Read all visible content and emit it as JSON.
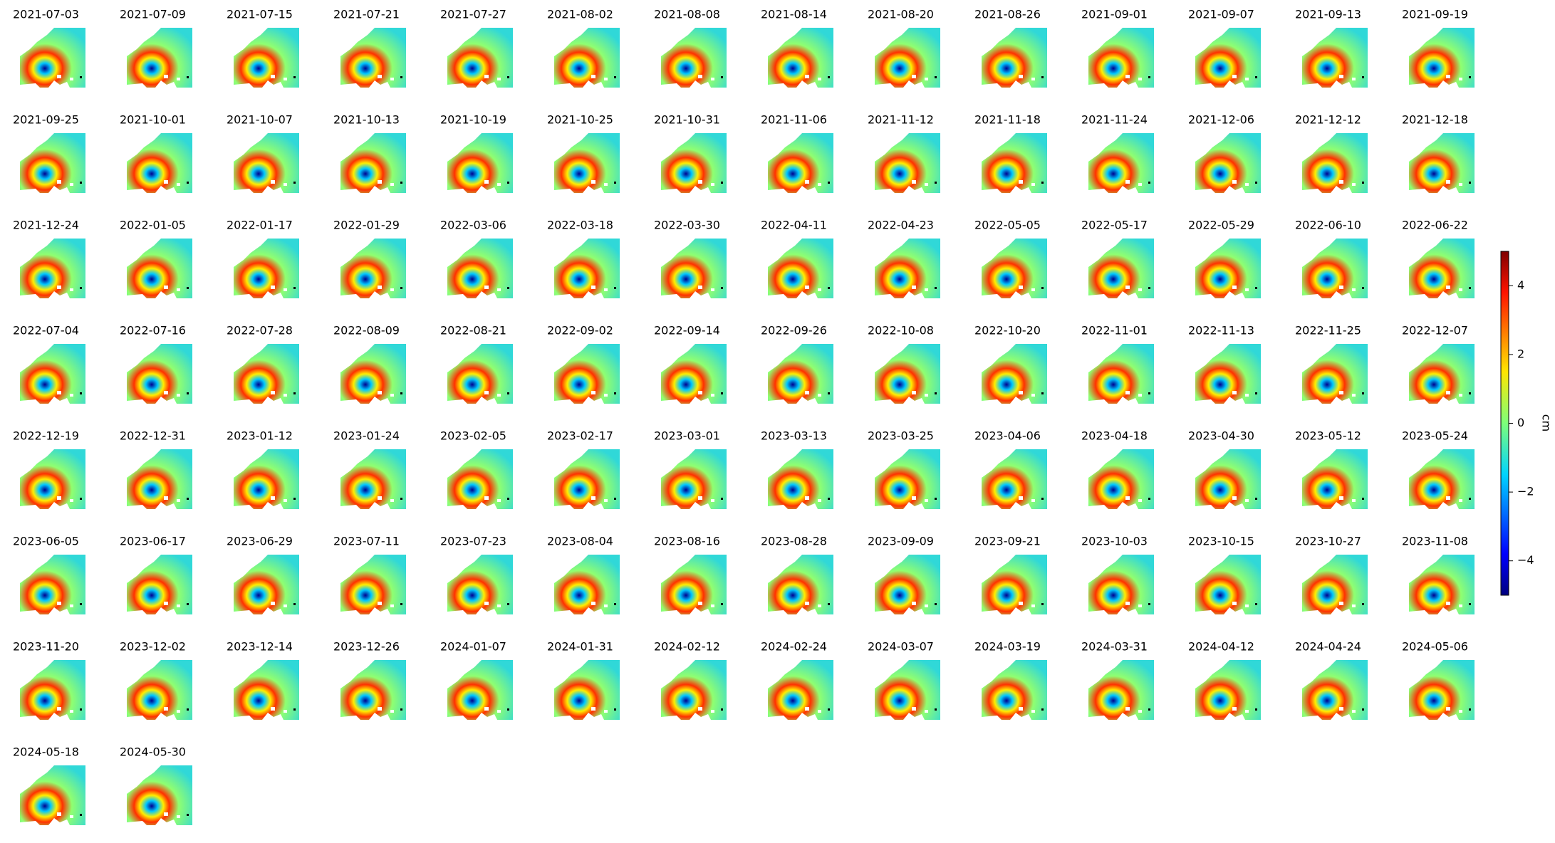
{
  "chart_data": {
    "type": "image-grid",
    "panel_titles": [
      "2021-07-03",
      "2021-07-09",
      "2021-07-15",
      "2021-07-21",
      "2021-07-27",
      "2021-08-02",
      "2021-08-08",
      "2021-08-14",
      "2021-08-20",
      "2021-08-26",
      "2021-09-01",
      "2021-09-07",
      "2021-09-13",
      "2021-09-19",
      "2021-09-25",
      "2021-10-01",
      "2021-10-07",
      "2021-10-13",
      "2021-10-19",
      "2021-10-25",
      "2021-10-31",
      "2021-11-06",
      "2021-11-12",
      "2021-11-18",
      "2021-11-24",
      "2021-12-06",
      "2021-12-12",
      "2021-12-18",
      "2021-12-24",
      "2022-01-05",
      "2022-01-17",
      "2022-01-29",
      "2022-03-06",
      "2022-03-18",
      "2022-03-30",
      "2022-04-11",
      "2022-04-23",
      "2022-05-05",
      "2022-05-17",
      "2022-05-29",
      "2022-06-10",
      "2022-06-22",
      "2022-07-04",
      "2022-07-16",
      "2022-07-28",
      "2022-08-09",
      "2022-08-21",
      "2022-09-02",
      "2022-09-14",
      "2022-09-26",
      "2022-10-08",
      "2022-10-20",
      "2022-11-01",
      "2022-11-13",
      "2022-11-25",
      "2022-12-07",
      "2022-12-19",
      "2022-12-31",
      "2023-01-12",
      "2023-01-24",
      "2023-02-05",
      "2023-02-17",
      "2023-03-01",
      "2023-03-13",
      "2023-03-25",
      "2023-04-06",
      "2023-04-18",
      "2023-04-30",
      "2023-05-12",
      "2023-05-24",
      "2023-06-05",
      "2023-06-17",
      "2023-06-29",
      "2023-07-11",
      "2023-07-23",
      "2023-08-04",
      "2023-08-16",
      "2023-08-28",
      "2023-09-09",
      "2023-09-21",
      "2023-10-03",
      "2023-10-15",
      "2023-10-27",
      "2023-11-08",
      "2023-11-20",
      "2023-12-02",
      "2023-12-14",
      "2023-12-26",
      "2024-01-07",
      "2024-01-31",
      "2024-02-12",
      "2024-02-24",
      "2024-03-07",
      "2024-03-19",
      "2024-03-31",
      "2024-04-12",
      "2024-04-24",
      "2024-05-06",
      "2024-05-18",
      "2024-05-30"
    ],
    "columns": 14,
    "colorbar_label": "cm",
    "clim": [
      -5,
      5
    ],
    "cticks": [
      {
        "value": -4,
        "label": "−4"
      },
      {
        "value": -2,
        "label": "−2"
      },
      0,
      2,
      4
    ]
  }
}
